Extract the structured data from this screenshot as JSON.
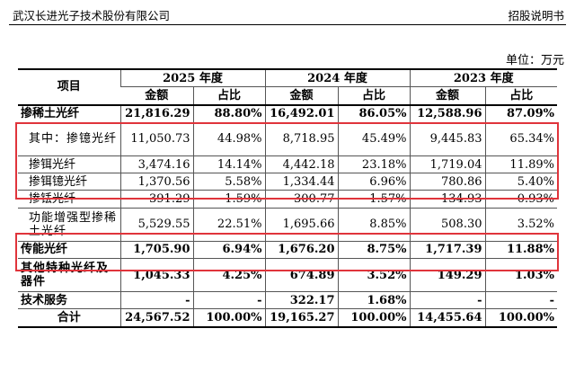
{
  "header": {
    "company": "武汉长进光子技术股份有限公司",
    "doc": "招股说明书"
  },
  "unit": "单位：万元",
  "table": {
    "col_item": "项目",
    "years": [
      "2025 年度",
      "2024 年度",
      "2023 年度"
    ],
    "sub_amount": "金额",
    "sub_ratio": "占比",
    "rows": [
      {
        "label": "掺稀土光纤",
        "v": [
          "21,816.29",
          "88.80%",
          "16,492.01",
          "86.05%",
          "12,588.96",
          "87.09%"
        ]
      },
      {
        "label": "其中：掺镱光纤",
        "v": [
          "11,050.73",
          "44.98%",
          "8,718.95",
          "45.49%",
          "9,445.83",
          "65.34%"
        ]
      },
      {
        "label": "掺铒光纤",
        "v": [
          "3,474.16",
          "14.14%",
          "4,442.18",
          "23.18%",
          "1,719.04",
          "11.89%"
        ]
      },
      {
        "label": "掺铒镱光纤",
        "v": [
          "1,370.56",
          "5.58%",
          "1,334.44",
          "6.96%",
          "780.86",
          "5.40%"
        ]
      },
      {
        "label": "掺铥光纤",
        "v": [
          "391.29",
          "1.59%",
          "300.77",
          "1.57%",
          "134.93",
          "0.93%"
        ]
      },
      {
        "label": "功能增强型掺稀土光纤",
        "v": [
          "5,529.55",
          "22.51%",
          "1,695.66",
          "8.85%",
          "508.30",
          "3.52%"
        ]
      },
      {
        "label": "传能光纤",
        "v": [
          "1,705.90",
          "6.94%",
          "1,676.20",
          "8.75%",
          "1,717.39",
          "11.88%"
        ]
      },
      {
        "label": "其他特种光纤及器件",
        "v": [
          "1,045.33",
          "4.25%",
          "674.89",
          "3.52%",
          "149.29",
          "1.03%"
        ]
      },
      {
        "label": "技术服务",
        "v": [
          "-",
          "-",
          "322.17",
          "1.68%",
          "-",
          "-"
        ]
      },
      {
        "label": "合计",
        "v": [
          "24,567.52",
          "100.00%",
          "19,165.27",
          "100.00%",
          "14,455.64",
          "100.00%"
        ]
      }
    ]
  },
  "highlight_color": "#e0343b"
}
